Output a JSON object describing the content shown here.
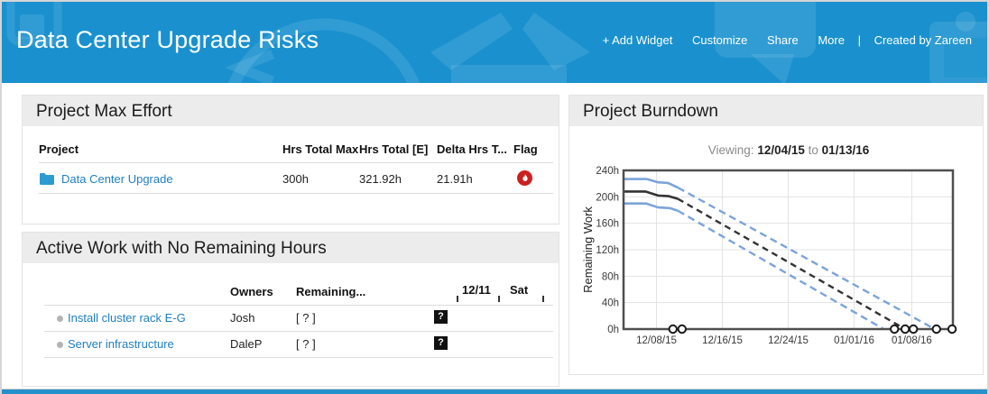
{
  "header": {
    "title": "Data Center Upgrade Risks",
    "menu": [
      "+ Add Widget",
      "Customize",
      "Share",
      "More"
    ],
    "menu_separator": "|",
    "created_by": "Created by Zareen"
  },
  "colors": {
    "header_bg": "#1a91ce",
    "link_blue": "#1e7fc1",
    "chart_blue": "#7ba4d9",
    "chart_black": "#333333",
    "flag_red": "#cc2020",
    "panel_band_bg": "#ececec",
    "bottom_strip_blue": "#2591cb"
  },
  "icons": {
    "folder": "blue-folder",
    "flag": "white-flame-in-red-circle",
    "task_bullet": "gray-dot",
    "timeline_marker": "question-mark-in-black-box",
    "header_watermarks": [
      "app-tile",
      "clock",
      "open-box",
      "speech-bubble",
      "clipboard"
    ]
  },
  "max_effort": {
    "title": "Project Max Effort",
    "columns": [
      "Project",
      "Hrs Total Max",
      "Hrs Total [E]",
      "Delta Hrs T...",
      "Flag"
    ],
    "rows": [
      {
        "project": "Data Center Upgrade",
        "hrs_total_max": "300h",
        "hrs_total_e": "321.92h",
        "delta_hrs": "21.91h",
        "flag": "flame"
      }
    ]
  },
  "active_work": {
    "title": "Active Work with No Remaining Hours",
    "columns": [
      "Owners",
      "Remaining...",
      "12/11",
      "Sat"
    ],
    "rows": [
      {
        "task": "Install cluster rack E-G",
        "owner": "Josh",
        "remaining": "[ ? ]",
        "timeline_marker": "?"
      },
      {
        "task": "Server infrastructure",
        "owner": "DaleP",
        "remaining": "[ ? ]",
        "timeline_marker": "?"
      }
    ]
  },
  "burndown": {
    "title": "Project Burndown",
    "viewing_label": "Viewing:",
    "date_from": "12/04/15",
    "to_word": "to",
    "date_to": "01/13/16"
  },
  "chart_data": {
    "type": "line",
    "title": "Project Burndown",
    "ylabel": "Remaining Work",
    "xlabel": "",
    "x_axis": "days since 12/04/15",
    "x_range": [
      0,
      40
    ],
    "ylim": [
      0,
      240
    ],
    "grid": true,
    "legend": "none",
    "y_tick_values": [
      240,
      200,
      160,
      120,
      80,
      40,
      0
    ],
    "y_tick_labels": [
      "240h",
      "200h",
      "160h",
      "120h",
      "80h",
      "40h",
      "0h"
    ],
    "x_ticks": [
      {
        "day": 4,
        "label": "12/08/15"
      },
      {
        "day": 12,
        "label": "12/16/15"
      },
      {
        "day": 20,
        "label": "12/24/15"
      },
      {
        "day": 28,
        "label": "01/01/16"
      },
      {
        "day": 35,
        "label": "01/08/16"
      }
    ],
    "series": [
      {
        "name": "planned-upper-bound",
        "color": "#7ba4d9",
        "dash": "8 5",
        "solid": [
          [
            0,
            227
          ],
          [
            2.8,
            227
          ],
          [
            4.2,
            222
          ],
          [
            5.4,
            221
          ],
          [
            6.6,
            214
          ]
        ],
        "dashed": [
          [
            6.6,
            214
          ],
          [
            37.8,
            0
          ]
        ]
      },
      {
        "name": "actual-remaining-work",
        "color": "#333333",
        "dash": "7 5",
        "solid": [
          [
            0,
            208
          ],
          [
            2.7,
            208
          ],
          [
            4.2,
            202
          ],
          [
            5.5,
            201
          ],
          [
            6.6,
            197
          ]
        ],
        "dashed": [
          [
            6.6,
            197
          ],
          [
            34.2,
            0
          ]
        ]
      },
      {
        "name": "planned-lower-bound",
        "color": "#7ba4d9",
        "dash": "8 5",
        "solid": [
          [
            0,
            190
          ],
          [
            2.7,
            190
          ],
          [
            4.2,
            184
          ],
          [
            5.6,
            183
          ],
          [
            6.6,
            179
          ]
        ],
        "dashed": [
          [
            6.6,
            179
          ],
          [
            31.6,
            0
          ]
        ]
      }
    ],
    "zero_markers_days": [
      6,
      7.1,
      32.9,
      34.2,
      35.2,
      38,
      39.9
    ]
  }
}
